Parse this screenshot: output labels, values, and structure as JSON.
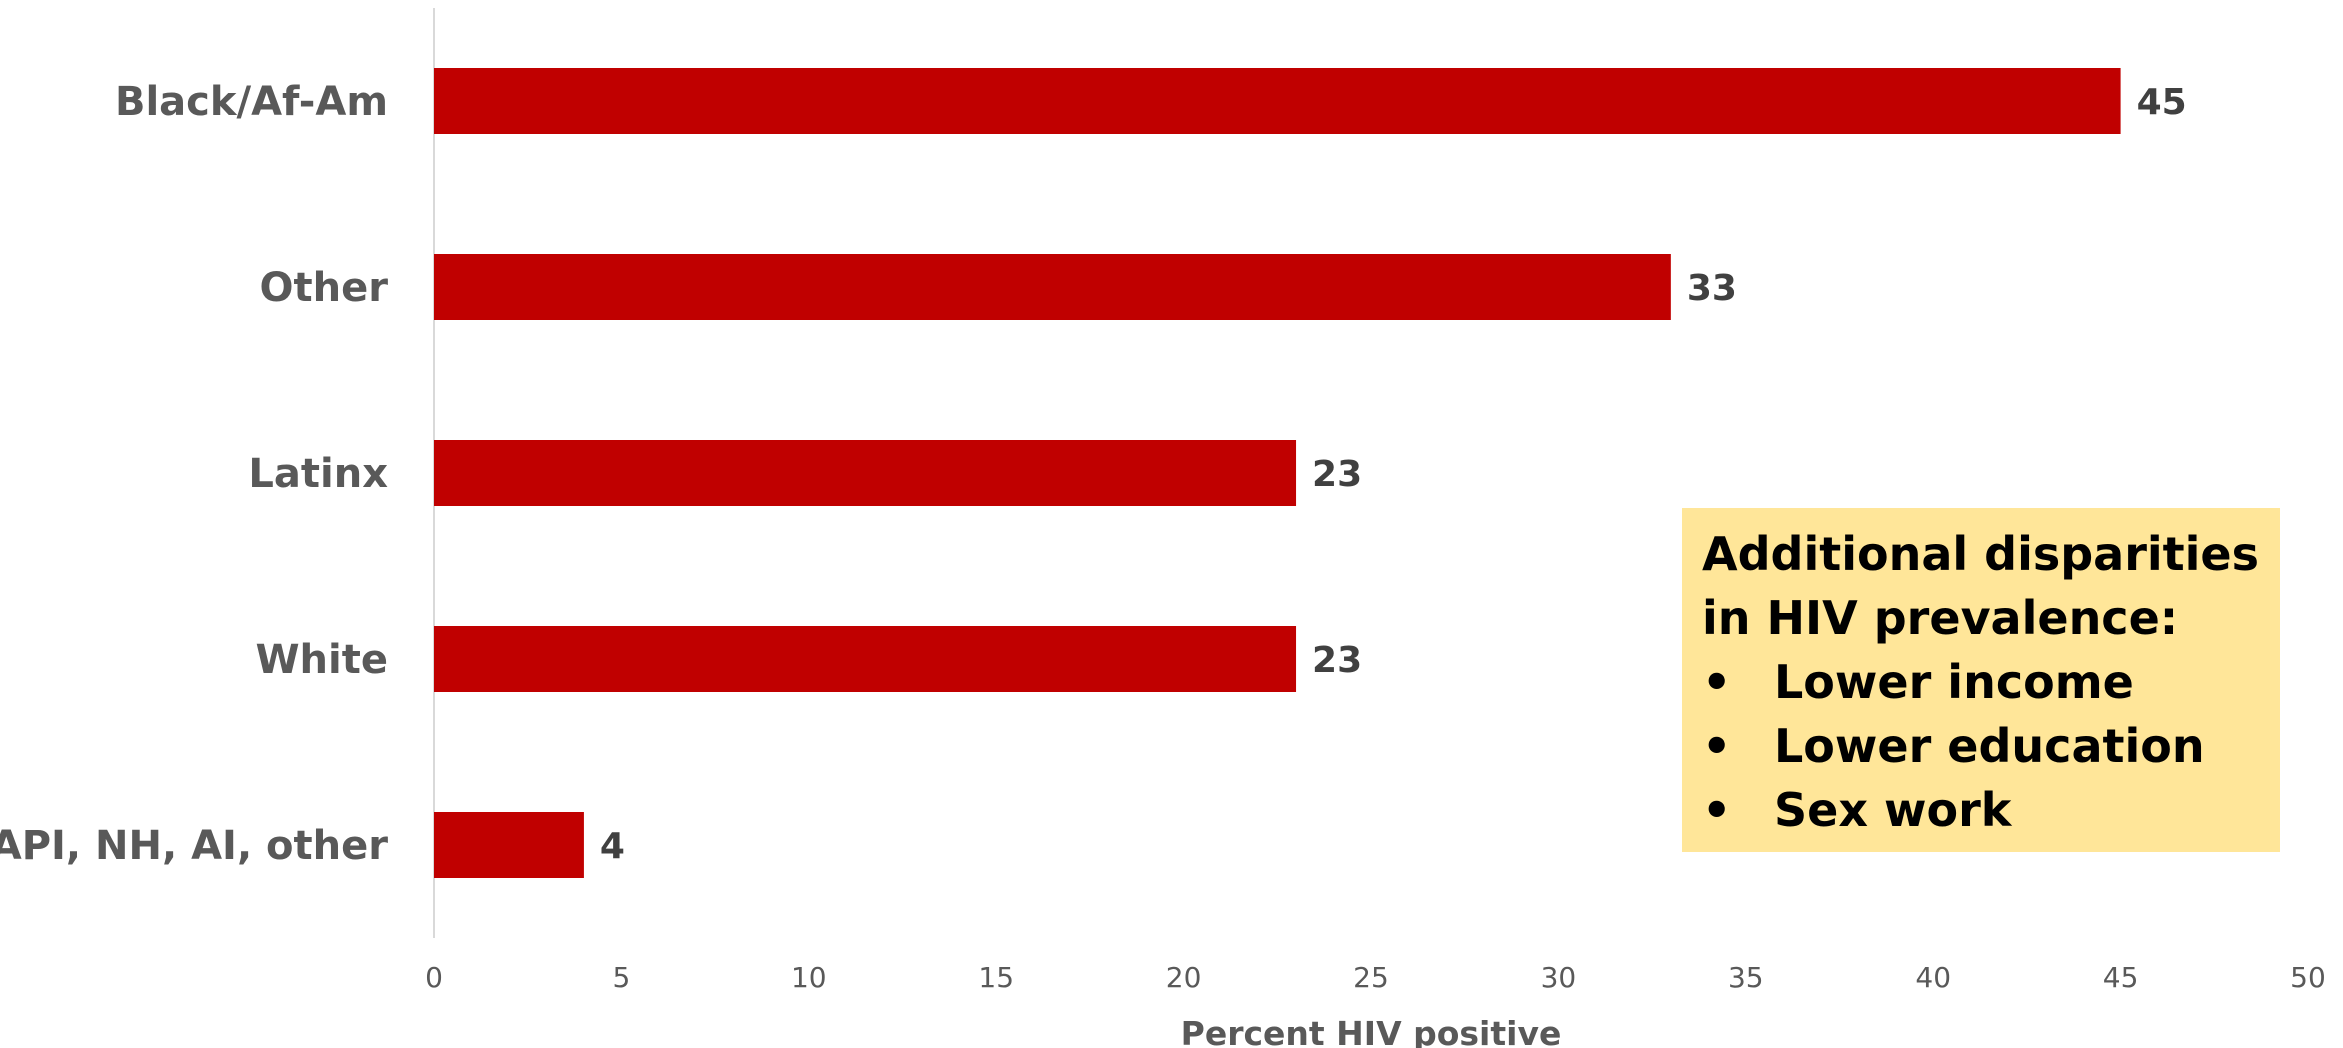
{
  "chart_data": {
    "type": "bar",
    "orientation": "horizontal",
    "categories": [
      "Black/Af-Am",
      "Other",
      "Latinx",
      "White",
      "*API, NH, AI, other"
    ],
    "values": [
      45,
      33,
      23,
      23,
      4
    ],
    "xlabel": "Percent HIV positive",
    "ylabel": "",
    "xlim": [
      0,
      50
    ],
    "ticks": [
      0,
      5,
      10,
      15,
      20,
      25,
      30,
      35,
      40,
      45,
      50
    ],
    "grid": false,
    "bar_color": "#c00000"
  },
  "callout": {
    "title": "Additional disparities in HIV prevalence:",
    "items": [
      "Lower income",
      "Lower education",
      "Sex work"
    ],
    "background": "#ffe699"
  }
}
